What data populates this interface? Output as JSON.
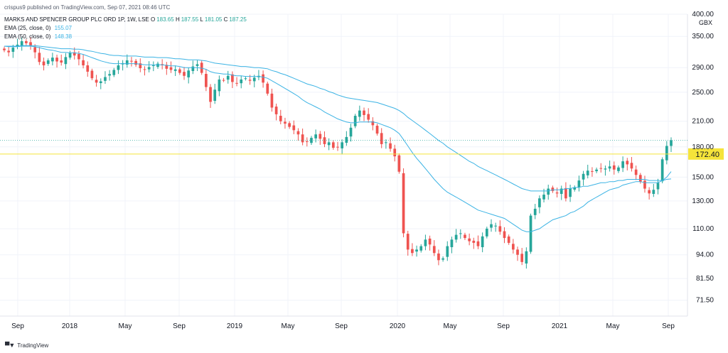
{
  "publisher_line": "crispus9 published on TradingView.com, Sep 07, 2021 08:46 UTC",
  "legend": {
    "title": "MARKS AND SPENCER GROUP PLC ORD 1P, 1W, LSE",
    "ohlc": [
      {
        "label": "O",
        "value": "183.65"
      },
      {
        "label": "H",
        "value": "187.55"
      },
      {
        "label": "L",
        "value": "181.05"
      },
      {
        "label": "C",
        "value": "187.25"
      }
    ],
    "ema1_label": "EMA (25, close, 0)",
    "ema1_value": "155.07",
    "ema2_label": "EMA (50, close, 0)",
    "ema2_value": "148.38"
  },
  "currency": "GBX",
  "footer": "TradingView",
  "colors": {
    "up": "#26a69a",
    "down": "#ef5350",
    "ema": "#3bb3e4",
    "hline": "#f5e43a",
    "last_price_line": "#26a69a"
  },
  "chart_data": {
    "type": "candlestick",
    "title": "MARKS AND SPENCER GROUP PLC ORD 1P, 1W, LSE",
    "y_scale": "log",
    "ylim": [
      65,
      400
    ],
    "y_ticks": [
      "400.00",
      "350.00",
      "290.00",
      "250.00",
      "210.00",
      "180.00",
      "150.00",
      "130.00",
      "110.00",
      "94.00",
      "81.50",
      "71.50"
    ],
    "x_ticks": [
      "Sep",
      "2018",
      "May",
      "Sep",
      "2019",
      "May",
      "Sep",
      "2020",
      "May",
      "Sep",
      "2021",
      "May",
      "Sep"
    ],
    "horizontal_line": {
      "value": 172.4,
      "label": "172.40"
    },
    "last_price": 187.25,
    "weekly_closes": [
      322,
      318,
      327,
      333,
      340,
      336,
      331,
      318,
      300,
      294,
      303,
      308,
      301,
      299,
      309,
      317,
      312,
      305,
      294,
      283,
      272,
      265,
      267,
      274,
      279,
      286,
      294,
      298,
      303,
      301,
      295,
      289,
      287,
      291,
      294,
      297,
      294,
      288,
      286,
      287,
      281,
      276,
      285,
      292,
      296,
      281,
      258,
      236,
      254,
      270,
      269,
      276,
      266,
      264,
      270,
      272,
      268,
      273,
      276,
      265,
      248,
      228,
      219,
      210,
      207,
      203,
      199,
      194,
      185,
      186,
      190,
      194,
      189,
      183,
      185,
      179,
      180,
      185,
      191,
      202,
      217,
      224,
      218,
      212,
      205,
      195,
      183,
      185,
      178,
      170,
      155,
      107,
      97,
      95,
      97,
      99,
      103,
      100,
      95,
      91,
      92,
      99,
      103,
      106,
      107,
      104,
      102,
      101,
      99,
      105,
      110,
      113,
      112,
      108,
      104,
      101,
      97,
      94,
      90,
      96,
      119,
      124,
      132,
      135,
      140,
      138,
      136,
      140,
      132,
      140,
      141,
      147,
      153,
      156,
      155,
      157,
      158,
      158,
      160,
      157,
      159,
      165,
      162,
      158,
      152,
      146,
      140,
      136,
      139,
      145,
      167,
      181,
      187.25
    ],
    "ema25": [
      330,
      329,
      329,
      329,
      330,
      330,
      330,
      329,
      327,
      325,
      323,
      322,
      320,
      318,
      318,
      317,
      317,
      316,
      314,
      311,
      308,
      305,
      302,
      300,
      298,
      297,
      297,
      297,
      297,
      297,
      297,
      296,
      295,
      295,
      295,
      295,
      295,
      294,
      293,
      293,
      292,
      290,
      290,
      290,
      290,
      289,
      287,
      283,
      281,
      280,
      279,
      279,
      277,
      276,
      276,
      275,
      275,
      275,
      275,
      274,
      272,
      268,
      264,
      260,
      256,
      252,
      248,
      244,
      239,
      235,
      232,
      229,
      226,
      222,
      219,
      216,
      213,
      211,
      209,
      208,
      208,
      209,
      209,
      209,
      209,
      208,
      206,
      204,
      202,
      199,
      195,
      188,
      181,
      174,
      168,
      163,
      158,
      153,
      148,
      144,
      140,
      137,
      135,
      133,
      131,
      129,
      127,
      125,
      123,
      122,
      121,
      120,
      119,
      118,
      117,
      115,
      113,
      111,
      109,
      108,
      108,
      109,
      110,
      112,
      114,
      116,
      117,
      118,
      119,
      121,
      122,
      124,
      126,
      129,
      131,
      133,
      135,
      137,
      139,
      140,
      141,
      143,
      144,
      145,
      146,
      146,
      145,
      145,
      145,
      145,
      147,
      150,
      155.07
    ],
    "ema50": [
      330,
      330,
      330,
      330,
      331,
      331,
      331,
      331,
      330,
      329,
      328,
      327,
      326,
      325,
      325,
      325,
      324,
      324,
      323,
      321,
      320,
      318,
      316,
      315,
      313,
      312,
      312,
      311,
      311,
      311,
      311,
      310,
      309,
      309,
      309,
      308,
      308,
      308,
      307,
      306,
      306,
      305,
      304,
      304,
      304,
      303,
      302,
      300,
      298,
      297,
      296,
      295,
      294,
      293,
      292,
      292,
      291,
      290,
      290,
      289,
      288,
      285,
      283,
      280,
      278,
      275,
      272,
      269,
      266,
      263,
      261,
      259,
      256,
      254,
      251,
      249,
      246,
      244,
      242,
      241,
      240,
      239,
      238,
      237,
      236,
      235,
      233,
      231,
      229,
      227,
      224,
      220,
      215,
      211,
      207,
      203,
      199,
      195,
      191,
      187,
      184,
      180,
      177,
      174,
      171,
      168,
      165,
      163,
      160,
      158,
      156,
      154,
      152,
      150,
      148,
      146,
      144,
      142,
      140,
      139,
      138,
      138,
      138,
      138,
      138,
      139,
      139,
      139,
      140,
      140,
      141,
      141,
      142,
      142,
      143,
      144,
      145,
      145,
      146,
      146,
      147,
      147,
      148,
      148,
      148,
      148,
      148,
      147,
      147,
      147,
      147,
      148,
      148.38
    ]
  }
}
